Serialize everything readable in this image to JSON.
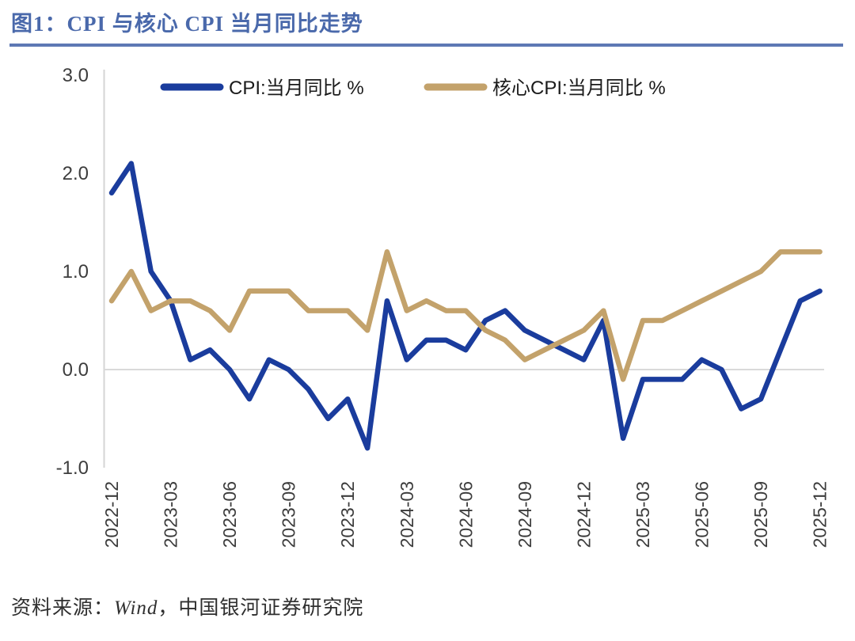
{
  "header": {
    "title": "图1：CPI 与核心 CPI 当月同比走势"
  },
  "source": {
    "prefix": "资料来源：",
    "vendor": "Wind",
    "suffix": "，中国银河证券研究院"
  },
  "colors": {
    "cpi_line": "#1a3c9d",
    "core_cpi_line": "#c3a26b",
    "title_text": "#4a69ab",
    "title_rule": "#5d78b4",
    "axis_text": "#3d3d3d",
    "zero_gridline": "#dadada",
    "axis_line": "#d4d4d4"
  },
  "chart_data": {
    "type": "line",
    "title": "图1：CPI 与核心 CPI 当月同比走势",
    "x": [
      "2022-12",
      "2023-01",
      "2023-02",
      "2023-03",
      "2023-04",
      "2023-05",
      "2023-06",
      "2023-07",
      "2023-08",
      "2023-09",
      "2023-10",
      "2023-11",
      "2023-12",
      "2024-01",
      "2024-02",
      "2024-03",
      "2024-04",
      "2024-05",
      "2024-06",
      "2024-07",
      "2024-08",
      "2024-09",
      "2024-10",
      "2024-11",
      "2024-12",
      "2025-01",
      "2025-02",
      "2025-03",
      "2025-04",
      "2025-05",
      "2025-06",
      "2025-07",
      "2025-08",
      "2025-09",
      "2025-10",
      "2025-11",
      "2025-12"
    ],
    "series": [
      {
        "name": "CPI:当月同比 %",
        "color": "#1a3c9d",
        "values": [
          1.8,
          2.1,
          1.0,
          0.7,
          0.1,
          0.2,
          0.0,
          -0.3,
          0.1,
          0.0,
          -0.2,
          -0.5,
          -0.3,
          -0.8,
          0.7,
          0.1,
          0.3,
          0.3,
          0.2,
          0.5,
          0.6,
          0.4,
          0.3,
          0.2,
          0.1,
          0.5,
          -0.7,
          -0.1,
          -0.1,
          -0.1,
          0.1,
          0.0,
          -0.4,
          -0.3,
          0.2,
          0.7,
          0.8
        ]
      },
      {
        "name": "核心CPI:当月同比 %",
        "color": "#c3a26b",
        "values": [
          0.7,
          1.0,
          0.6,
          0.7,
          0.7,
          0.6,
          0.4,
          0.8,
          0.8,
          0.8,
          0.6,
          0.6,
          0.6,
          0.4,
          1.2,
          0.6,
          0.7,
          0.6,
          0.6,
          0.4,
          0.3,
          0.1,
          0.2,
          0.3,
          0.4,
          0.6,
          -0.1,
          0.5,
          0.5,
          0.6,
          0.7,
          0.8,
          0.9,
          1.0,
          1.2,
          1.2,
          1.2
        ]
      }
    ],
    "xlabel": "",
    "ylabel": "",
    "ylim": [
      -1.0,
      3.0
    ],
    "ytick_labels": [
      "3.0",
      "2.0",
      "1.0",
      "0.0",
      "-1.0"
    ],
    "ytick_values": [
      3.0,
      2.0,
      1.0,
      0.0,
      -1.0
    ],
    "xtick_labels": [
      "2022-12",
      "2023-03",
      "2023-06",
      "2023-09",
      "2023-12",
      "2024-03",
      "2024-06",
      "2024-09",
      "2024-12",
      "2025-03",
      "2025-06",
      "2025-09",
      "2025-12"
    ],
    "xtick_step": 3,
    "grid": "zero-line-only",
    "legend_position": "top"
  }
}
